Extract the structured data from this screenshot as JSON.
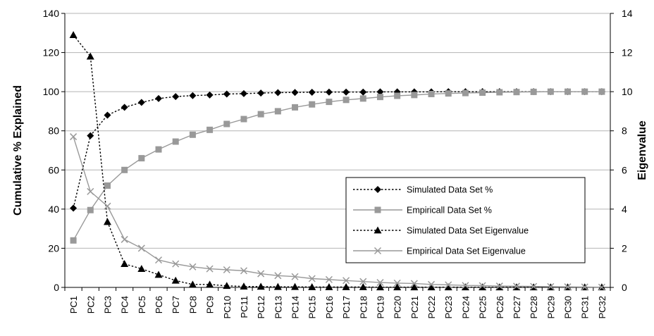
{
  "chart_data": {
    "type": "line",
    "title": "",
    "ylabel": "Cumulative % Explained",
    "y2label": "Eigenvalue",
    "ylim": [
      0,
      140
    ],
    "y2lim": [
      0,
      14
    ],
    "yticks": [
      "0",
      "20",
      "40",
      "60",
      "80",
      "100",
      "120",
      "140"
    ],
    "y2ticks": [
      "0",
      "2",
      "4",
      "6",
      "8",
      "10",
      "12",
      "14"
    ],
    "grid": "horizontal",
    "legend_position": "center-right",
    "categories": [
      "PC1",
      "PC2",
      "PC3",
      "PC4",
      "PC5",
      "PC6",
      "PC7",
      "PC8",
      "PC9",
      "PC10",
      "PC11",
      "PC12",
      "PC13",
      "PC14",
      "PC15",
      "PC16",
      "PC17",
      "PC18",
      "PC19",
      "PC20",
      "PC21",
      "PC22",
      "PC23",
      "PC24",
      "PC25",
      "PC26",
      "PC27",
      "PC28",
      "PC29",
      "PC30",
      "PC31",
      "PC32"
    ],
    "series": [
      {
        "name": "Simulated Data Set %",
        "axis": "left",
        "color": "#000000",
        "line": "dotted",
        "marker": "diamond",
        "values": [
          40.5,
          77.5,
          88,
          92,
          94.5,
          96.5,
          97.5,
          98,
          98.3,
          98.8,
          99,
          99.3,
          99.5,
          99.6,
          99.7,
          99.8,
          99.8,
          99.8,
          99.9,
          99.9,
          99.9,
          99.9,
          100,
          100,
          100,
          100,
          100,
          100,
          100,
          100,
          100,
          100
        ]
      },
      {
        "name": "Empiricall Data Set %",
        "axis": "left",
        "color": "#999999",
        "line": "solid",
        "marker": "square",
        "values": [
          24,
          39.5,
          52,
          60,
          66,
          70.5,
          74.5,
          78,
          80.5,
          83.5,
          86,
          88.5,
          90,
          92,
          93.5,
          94.8,
          95.8,
          96.5,
          97.3,
          97.9,
          98.3,
          98.8,
          99.1,
          99.3,
          99.5,
          99.7,
          99.8,
          99.9,
          100,
          100,
          100,
          100
        ]
      },
      {
        "name": "Simulated Data Set Eigenvalue",
        "axis": "right",
        "color": "#000000",
        "line": "dotted",
        "marker": "triangle",
        "values": [
          12.9,
          11.8,
          3.35,
          1.2,
          0.95,
          0.65,
          0.35,
          0.15,
          0.15,
          0.08,
          0.05,
          0.04,
          0.03,
          0.03,
          0.02,
          0.02,
          0.02,
          0.02,
          0.01,
          0.01,
          0.01,
          0.01,
          0.01,
          0.01,
          0.01,
          0.01,
          0.01,
          0.01,
          0.01,
          0.01,
          0.01,
          0.01
        ]
      },
      {
        "name": "Empirical Data Set Eigenvalue",
        "axis": "right",
        "color": "#999999",
        "line": "solid",
        "marker": "x",
        "values": [
          7.7,
          4.9,
          4.15,
          2.45,
          2.0,
          1.4,
          1.2,
          1.05,
          0.95,
          0.9,
          0.85,
          0.7,
          0.6,
          0.55,
          0.45,
          0.4,
          0.35,
          0.3,
          0.25,
          0.22,
          0.2,
          0.15,
          0.13,
          0.1,
          0.09,
          0.07,
          0.06,
          0.05,
          0.04,
          0.03,
          0.02,
          0.01
        ]
      }
    ]
  }
}
